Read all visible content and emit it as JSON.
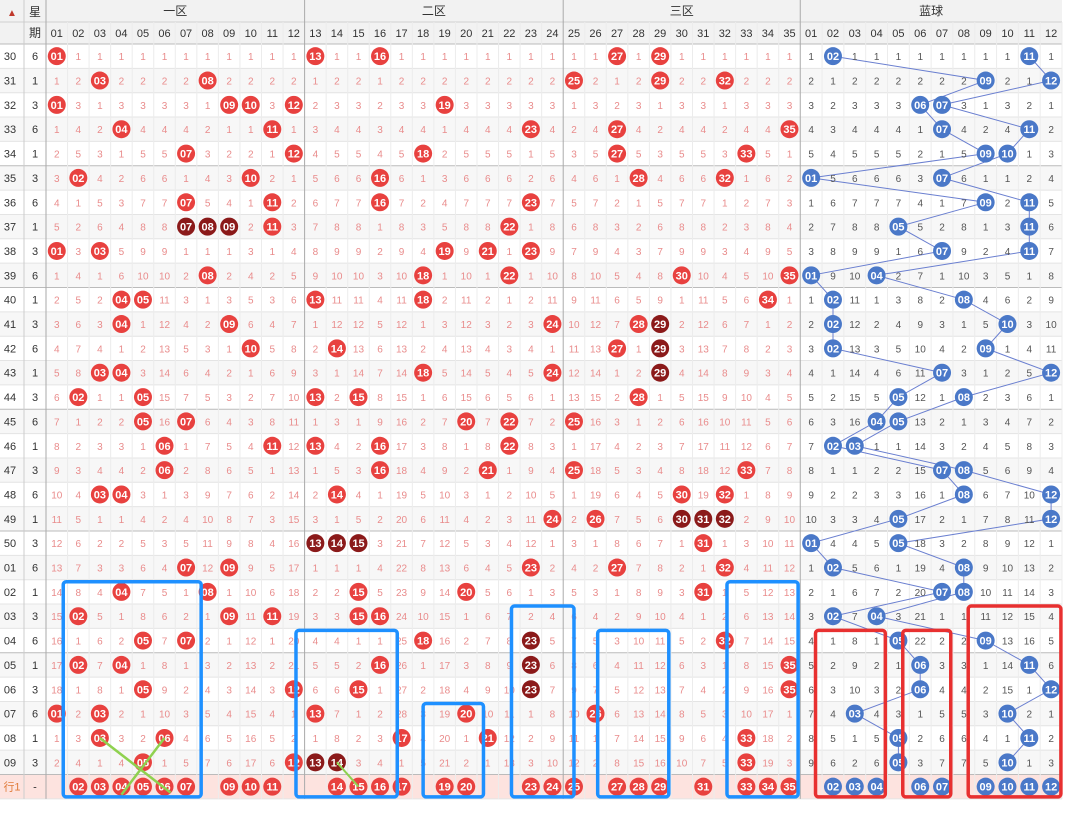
{
  "header": {
    "sort_label": "",
    "weekday_label_top": "星",
    "weekday_label_bottom": "期",
    "zones": [
      {
        "name": "一区",
        "numbers": [
          "01",
          "02",
          "03",
          "04",
          "05",
          "06",
          "07",
          "08",
          "09",
          "10",
          "11",
          "12"
        ]
      },
      {
        "name": "二区",
        "numbers": [
          "13",
          "14",
          "15",
          "16",
          "17",
          "18",
          "19",
          "20",
          "21",
          "22",
          "23",
          "24"
        ]
      },
      {
        "name": "三区",
        "numbers": [
          "25",
          "26",
          "27",
          "28",
          "29",
          "30",
          "31",
          "32",
          "33",
          "34",
          "35"
        ]
      },
      {
        "name": "蓝球",
        "numbers": [
          "01",
          "02",
          "03",
          "04",
          "05",
          "06",
          "07",
          "08",
          "09",
          "10",
          "11",
          "12"
        ]
      }
    ]
  },
  "colors": {
    "red_ball": "#e8413f",
    "dark_ball": "#8b1a1a",
    "blue_ball": "#4a78c8",
    "miss_red": "#e98c8c",
    "miss_blue": "#555555",
    "box_blue": "#1e90ff",
    "box_red": "#e83030",
    "header_bg": "#f2f2f2",
    "highlight_row": "#fde3df"
  },
  "chart_data": {
    "type": "table",
    "title": "",
    "rows": [
      {
        "issue": "30",
        "weekday": "6",
        "front": [
          1,
          13,
          16,
          27,
          29
        ],
        "back": [
          2,
          11
        ]
      },
      {
        "issue": "31",
        "weekday": "1",
        "front": [
          3,
          8,
          25,
          29,
          32
        ],
        "back": [
          9,
          12
        ]
      },
      {
        "issue": "32",
        "weekday": "3",
        "front": [
          1,
          9,
          10,
          12,
          19
        ],
        "back": [
          6,
          7
        ]
      },
      {
        "issue": "33",
        "weekday": "6",
        "front": [
          4,
          11,
          23,
          27,
          35
        ],
        "back": [
          7,
          11
        ]
      },
      {
        "issue": "34",
        "weekday": "1",
        "front": [
          7,
          12,
          18,
          27,
          33
        ],
        "back": [
          9,
          10
        ]
      },
      {
        "issue": "35",
        "weekday": "3",
        "front": [
          2,
          10,
          16,
          28,
          32
        ],
        "back": [
          1,
          7
        ]
      },
      {
        "issue": "36",
        "weekday": "6",
        "front": [
          7,
          11,
          16,
          23
        ],
        "back": [
          9,
          11
        ]
      },
      {
        "issue": "37",
        "weekday": "1",
        "front": [
          7,
          8,
          9,
          11,
          22
        ],
        "back": [
          5,
          11
        ]
      },
      {
        "issue": "38",
        "weekday": "3",
        "front": [
          1,
          3,
          19,
          21,
          23
        ],
        "back": [
          7,
          11
        ]
      },
      {
        "issue": "39",
        "weekday": "6",
        "front": [
          8,
          18,
          22,
          30,
          35
        ],
        "back": [
          1,
          4
        ]
      },
      {
        "issue": "40",
        "weekday": "1",
        "front": [
          4,
          5,
          13,
          18,
          34
        ],
        "back": [
          2,
          8
        ]
      },
      {
        "issue": "41",
        "weekday": "3",
        "front": [
          4,
          9,
          24,
          28,
          29
        ],
        "back": [
          2,
          10
        ]
      },
      {
        "issue": "42",
        "weekday": "6",
        "front": [
          10,
          14,
          27,
          29
        ],
        "back": [
          2,
          9
        ]
      },
      {
        "issue": "43",
        "weekday": "1",
        "front": [
          3,
          4,
          18,
          24,
          29
        ],
        "back": [
          7,
          12
        ]
      },
      {
        "issue": "44",
        "weekday": "3",
        "front": [
          2,
          5,
          13,
          15,
          28
        ],
        "back": [
          5,
          8
        ]
      },
      {
        "issue": "45",
        "weekday": "6",
        "front": [
          5,
          7,
          20,
          22,
          25
        ],
        "back": [
          4,
          5
        ]
      },
      {
        "issue": "46",
        "weekday": "1",
        "front": [
          6,
          11,
          13,
          16,
          22
        ],
        "back": [
          2,
          3
        ]
      },
      {
        "issue": "47",
        "weekday": "3",
        "front": [
          6,
          16,
          21,
          25,
          33
        ],
        "back": [
          7,
          8
        ]
      },
      {
        "issue": "48",
        "weekday": "6",
        "front": [
          3,
          4,
          14,
          30,
          32
        ],
        "back": [
          8,
          12
        ]
      },
      {
        "issue": "49",
        "weekday": "1",
        "front": [
          24,
          26,
          30,
          31,
          32
        ],
        "back": [
          5,
          12
        ]
      },
      {
        "issue": "50",
        "weekday": "3",
        "front": [
          13,
          14,
          15,
          31
        ],
        "back": [
          1,
          5
        ]
      },
      {
        "issue": "01",
        "weekday": "6",
        "front": [
          7,
          9,
          23,
          27,
          32
        ],
        "back": [
          2,
          8
        ]
      },
      {
        "issue": "02",
        "weekday": "1",
        "front": [
          4,
          8,
          15,
          20,
          31
        ],
        "back": [
          7,
          8
        ]
      },
      {
        "issue": "03",
        "weekday": "3",
        "front": [
          2,
          9,
          11,
          15,
          16
        ],
        "back": [
          2,
          4
        ]
      },
      {
        "issue": "04",
        "weekday": "6",
        "front": [
          5,
          7,
          18,
          23,
          32
        ],
        "back": [
          5,
          9
        ]
      },
      {
        "issue": "05",
        "weekday": "1",
        "front": [
          2,
          4,
          16,
          23,
          35
        ],
        "back": [
          6,
          11
        ]
      },
      {
        "issue": "06",
        "weekday": "3",
        "front": [
          5,
          12,
          15,
          23,
          35
        ],
        "back": [
          6,
          12
        ]
      },
      {
        "issue": "07",
        "weekday": "6",
        "front": [
          1,
          3,
          13,
          20,
          26
        ],
        "back": [
          3,
          10
        ]
      },
      {
        "issue": "08",
        "weekday": "1",
        "front": [
          3,
          6,
          17,
          21,
          33
        ],
        "back": [
          5,
          11
        ]
      },
      {
        "issue": "09",
        "weekday": "3",
        "front": [
          5,
          12,
          13,
          14,
          33
        ],
        "back": [
          5,
          10
        ]
      }
    ],
    "dark_balls": [
      {
        "issue": "37",
        "nums": [
          7,
          8,
          9
        ]
      },
      {
        "issue": "41",
        "nums": [
          29
        ]
      },
      {
        "issue": "42",
        "nums": [
          29
        ]
      },
      {
        "issue": "43",
        "nums": [
          29
        ]
      },
      {
        "issue": "49",
        "nums": [
          30,
          31,
          32
        ]
      },
      {
        "issue": "50",
        "nums": [
          13,
          14,
          15
        ]
      },
      {
        "issue": "04",
        "nums": [
          23
        ]
      },
      {
        "issue": "05",
        "nums": [
          23
        ]
      },
      {
        "issue": "06",
        "nums": [
          23
        ]
      },
      {
        "issue": "09",
        "nums": [
          13,
          14
        ]
      }
    ],
    "forecast_row": {
      "label": "行1",
      "weekday": "-",
      "front": [
        2,
        3,
        4,
        5,
        6,
        7,
        9,
        10,
        11,
        14,
        15,
        16,
        17,
        19,
        20,
        23,
        24,
        25,
        27,
        28,
        29,
        31,
        33,
        34,
        35
      ],
      "back": [
        2,
        3,
        4,
        6,
        7,
        9,
        10,
        11,
        12
      ]
    }
  }
}
